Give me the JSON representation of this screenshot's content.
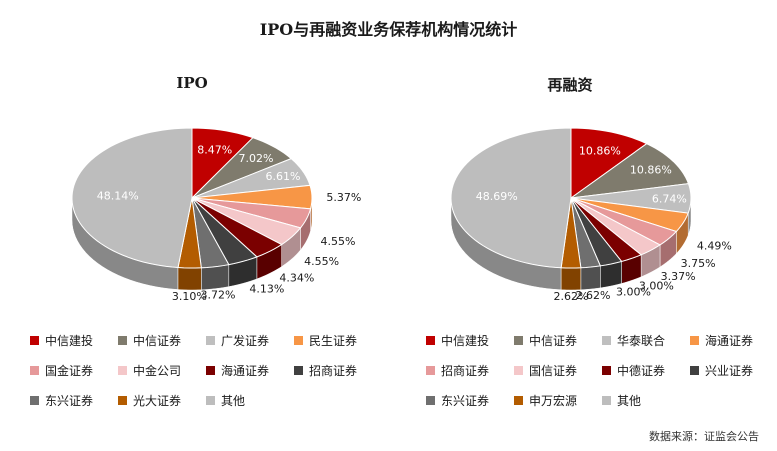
{
  "chart_data": {
    "type": "pie",
    "title": "IPO与再融资业务保荐机构情况统计",
    "source": "数据来源：证监会公告",
    "charts": [
      {
        "subtitle": "IPO",
        "slices": [
          {
            "name": "中信建投",
            "value": 8.47,
            "label": "8.47%",
            "color": "#c00000"
          },
          {
            "name": "中信证券",
            "value": 7.02,
            "label": "7.02%",
            "color": "#7f7b6d"
          },
          {
            "name": "广发证券",
            "value": 6.61,
            "label": "6.61%",
            "color": "#bfbfbf"
          },
          {
            "name": "民生证券",
            "value": 5.37,
            "label": "5.37%",
            "color": "#f79646"
          },
          {
            "name": "国金证券",
            "value": 4.55,
            "label": "4.55%",
            "color": "#e6999a"
          },
          {
            "name": "中金公司",
            "value": 4.55,
            "label": "4.55%",
            "color": "#f4c7c9"
          },
          {
            "name": "海通证券",
            "value": 4.34,
            "label": "4.34%",
            "color": "#7b0000"
          },
          {
            "name": "招商证券",
            "value": 4.13,
            "label": "4.13%",
            "color": "#404040"
          },
          {
            "name": "东兴证券",
            "value": 3.72,
            "label": "3.72%",
            "color": "#6f6f6f"
          },
          {
            "name": "光大证券",
            "value": 3.1,
            "label": "3.10%",
            "color": "#b35c00"
          },
          {
            "name": "其他",
            "value": 48.14,
            "label": "48.14%",
            "color": "#bdbdbd"
          }
        ]
      },
      {
        "subtitle": "再融资",
        "slices": [
          {
            "name": "中信建投",
            "value": 10.86,
            "label": "10.86%",
            "color": "#c00000"
          },
          {
            "name": "中信证券",
            "value": 10.86,
            "label": "10.86%",
            "color": "#7f7b6d"
          },
          {
            "name": "华泰联合",
            "value": 6.74,
            "label": "6.74%",
            "color": "#bfbfbf"
          },
          {
            "name": "海通证券",
            "value": 4.49,
            "label": "4.49%",
            "color": "#f79646"
          },
          {
            "name": "招商证券",
            "value": 3.75,
            "label": "3.75%",
            "color": "#e6999a"
          },
          {
            "name": "国信证券",
            "value": 3.37,
            "label": "3.37%",
            "color": "#f4c7c9"
          },
          {
            "name": "中德证券",
            "value": 3.0,
            "label": "3.00%",
            "color": "#7b0000"
          },
          {
            "name": "兴业证券",
            "value": 3.0,
            "label": "3.00%",
            "color": "#404040"
          },
          {
            "name": "东兴证券",
            "value": 2.62,
            "label": "2.62%",
            "color": "#6f6f6f"
          },
          {
            "name": "申万宏源",
            "value": 2.62,
            "label": "2.62%",
            "color": "#b35c00"
          },
          {
            "name": "其他",
            "value": 48.69,
            "label": "48.69%",
            "color": "#bdbdbd"
          }
        ]
      }
    ]
  }
}
